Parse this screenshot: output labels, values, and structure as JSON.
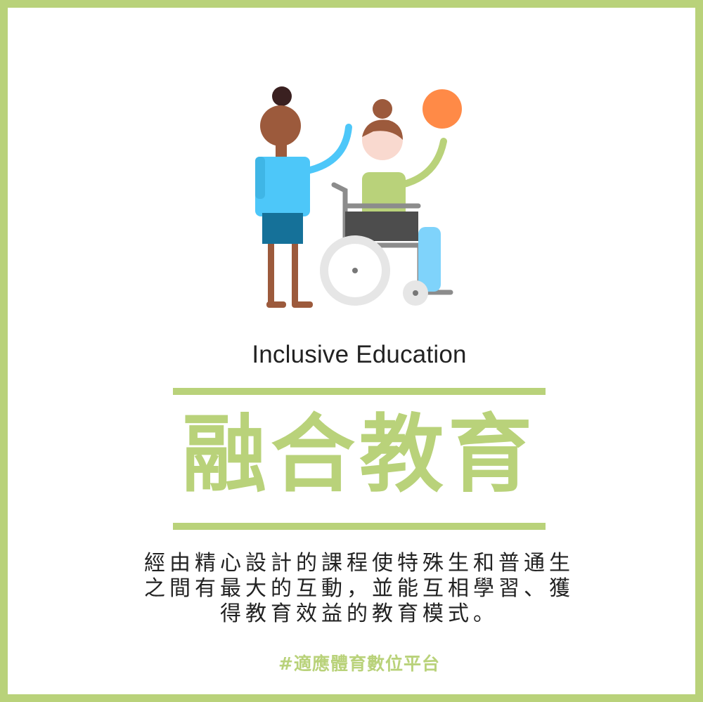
{
  "illustration": {
    "icon": "inclusive-education-illustration",
    "colors": {
      "accent_green": "#b9d27a",
      "person_shirt": "#4dc7f9",
      "person_shorts": "#157199",
      "skin_dark": "#9c5a3c",
      "hair_dark": "#3a2020",
      "wheelchair_user_shirt": "#b9d27a",
      "wheelchair_user_pants": "#7fd3fb",
      "ball": "#ff8a47",
      "wheelchair_frame": "#8c8c8c",
      "wheel": "#e6e6e6"
    }
  },
  "subtitle": "Inclusive Education",
  "title": "融合教育",
  "description": {
    "lines": [
      "經由精心設計的課程使特殊生和普通生",
      "之間有最大的互動，並能互相學習、獲",
      "得教育效益的教育模式。"
    ]
  },
  "hashtag": "#適應體育數位平台",
  "theme": {
    "border": "#b9d27a",
    "text": "#222222",
    "background": "#ffffff"
  }
}
